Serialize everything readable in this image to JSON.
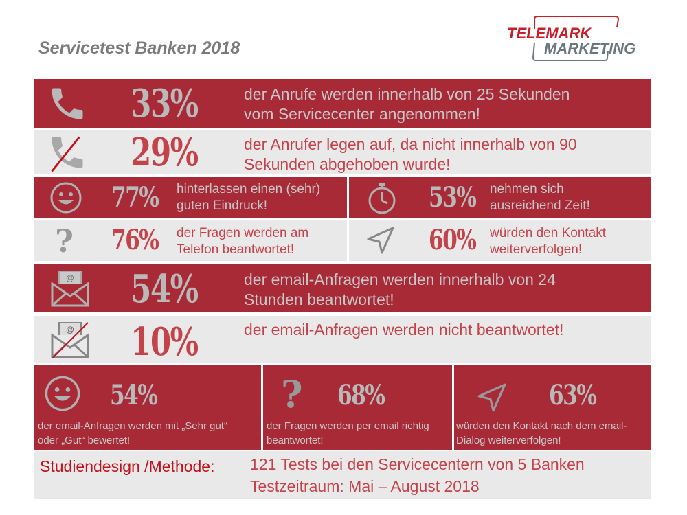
{
  "header": {
    "title": "Servicetest Banken 2018",
    "logo_line1": "TELEMARK",
    "logo_line2": "MARKETING"
  },
  "rows": [
    {
      "pct": "33%",
      "text1": "der Anrufe werden innerhalb von 25 Sekunden",
      "text2": "vom Servicecenter angenommen!",
      "icon": "phone-icon"
    },
    {
      "pct": "29%",
      "text1": "der Anrufer legen auf, da nicht innerhalb von 90",
      "text2": "Sekunden abgehoben wurde!",
      "icon": "phone-crossed-icon"
    },
    {
      "pct": "54%",
      "text1": "der email-Anfragen werden innerhalb von 24",
      "text2": "Stunden beantwortet!",
      "icon": "email-icon"
    },
    {
      "pct": "10%",
      "text1": "der email-Anfragen werden nicht beantwortet!",
      "icon": "email-crossed-icon"
    }
  ],
  "cells": [
    {
      "pct": "77%",
      "text1": "hinterlassen einen (sehr)",
      "text2": "guten Eindruck!",
      "icon": "smiley-icon"
    },
    {
      "pct": "53%",
      "text1": "nehmen sich",
      "text2": "ausreichend Zeit!",
      "icon": "stopwatch-icon"
    },
    {
      "pct": "76%",
      "text1": "der Fragen werden am",
      "text2": "Telefon beantwortet!",
      "icon": "question-icon"
    },
    {
      "pct": "60%",
      "text1": "würden den Kontakt",
      "text2": "weiterverfolgen!",
      "icon": "navigation-arrow-icon"
    }
  ],
  "email_cells": [
    {
      "pct": "54%",
      "text1": "der email-Anfragen werden mit „Sehr gut“",
      "text2": "oder „Gut“ bewertet!",
      "icon": "smiley-icon"
    },
    {
      "pct": "68%",
      "text1": "der Fragen werden per email richtig",
      "text2": "beantwortet!",
      "icon": "question-icon"
    },
    {
      "pct": "63%",
      "text1": "würden den Kontakt nach dem email-",
      "text2": "Dialog weiterverfolgen!",
      "icon": "navigation-arrow-icon"
    }
  ],
  "footer": {
    "label": "Studiendesign /Methode:",
    "line1": "121 Tests bei den Servicecentern von 5 Banken",
    "line2": "Testzeitraum: Mai – August 2018"
  },
  "colors": {
    "red": "#a82a37",
    "light": "#e9e9e9",
    "grey_text": "#b9b9b9",
    "red_text": "#c4434a"
  }
}
